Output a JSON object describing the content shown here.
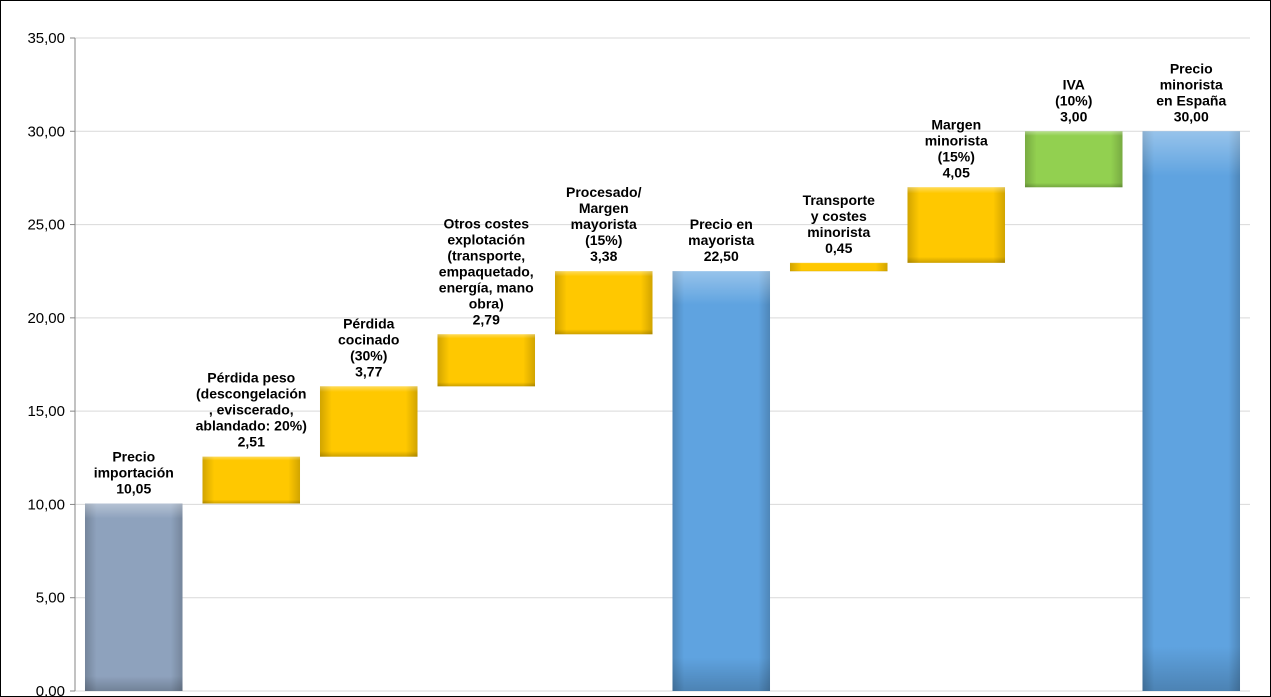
{
  "chart_data": {
    "type": "bar",
    "subtype": "waterfall",
    "title": "",
    "xlabel": "",
    "ylabel": "",
    "ylim": [
      0,
      35
    ],
    "yticks": [
      "0,00",
      "5,00",
      "10,00",
      "15,00",
      "20,00",
      "25,00",
      "30,00",
      "35,00"
    ],
    "grid": true,
    "legend": "none",
    "bars": [
      {
        "label": [
          "Precio",
          "importación",
          "10,05"
        ],
        "base": 0,
        "value": 10.05,
        "kind": "import",
        "color": "#8EA2BD"
      },
      {
        "label": [
          "Pérdida peso",
          "(descongelación",
          ", eviscerado,",
          "ablandado: 20%)",
          "2,51"
        ],
        "base": 10.05,
        "value": 2.51,
        "kind": "increment",
        "color": "#FFC800"
      },
      {
        "label": [
          "Pérdida",
          "cocinado",
          "(30%)",
          "3,77"
        ],
        "base": 12.56,
        "value": 3.77,
        "kind": "increment",
        "color": "#FFC800"
      },
      {
        "label": [
          "Otros costes",
          "explotación",
          "(transporte,",
          "empaquetado,",
          "energía, mano",
          "obra)",
          "2,79"
        ],
        "base": 16.33,
        "value": 2.79,
        "kind": "increment",
        "color": "#FFC800"
      },
      {
        "label": [
          "Procesado/",
          "Margen",
          "mayorista",
          "(15%)",
          "3,38"
        ],
        "base": 19.12,
        "value": 3.38,
        "kind": "increment",
        "color": "#FFC800"
      },
      {
        "label": [
          "Precio en",
          "mayorista",
          "22,50"
        ],
        "base": 0,
        "value": 22.5,
        "kind": "total",
        "color": "#5FA3E0"
      },
      {
        "label": [
          "Transporte",
          "y costes",
          "minorista",
          "0,45"
        ],
        "base": 22.5,
        "value": 0.45,
        "kind": "increment",
        "color": "#FFC800"
      },
      {
        "label": [
          "Margen",
          "minorista",
          "(15%)",
          "4,05"
        ],
        "base": 22.95,
        "value": 4.05,
        "kind": "increment",
        "color": "#FFC800"
      },
      {
        "label": [
          "IVA",
          "(10%)",
          "3,00"
        ],
        "base": 27.0,
        "value": 3.0,
        "kind": "tax",
        "color": "#92D050"
      },
      {
        "label": [
          "Precio",
          "minorista",
          "en España",
          "30,00"
        ],
        "base": 0,
        "value": 30.0,
        "kind": "total",
        "color": "#5FA3E0"
      }
    ],
    "colors": {
      "gridline": "#D9D9D9",
      "axis": "#868686"
    }
  }
}
